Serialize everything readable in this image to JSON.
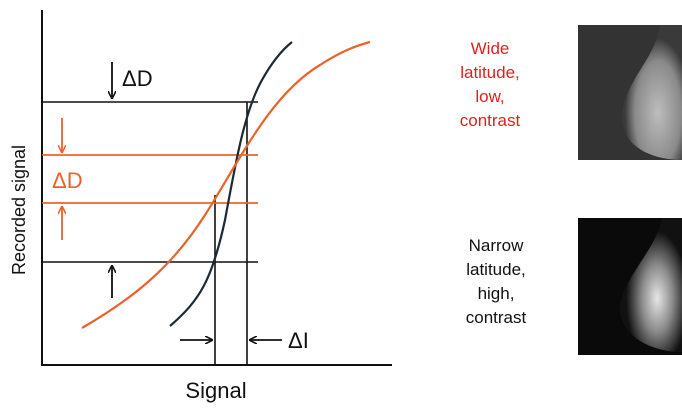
{
  "diagram": {
    "y_axis_label": "Recorded signal",
    "x_axis_label": "Signal",
    "delta_d_black": "ΔD",
    "delta_d_orange": "ΔD",
    "delta_i": "ΔI",
    "wide_caption": [
      "Wide",
      "latitude,",
      "low,",
      "contrast"
    ],
    "narrow_caption": [
      "Narrow",
      "latitude,",
      "high,",
      "contrast"
    ]
  }
}
